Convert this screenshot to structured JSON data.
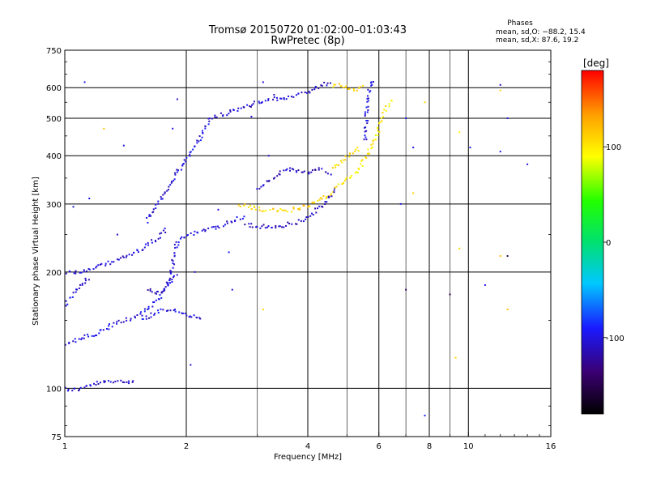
{
  "chart_data": {
    "type": "scatter",
    "title": "Tromsø 20150720 01:02:00–01:03:43",
    "subtitle": "RwPretec (8p)",
    "xlabel": "Frequency [MHz]",
    "ylabel": "Stationary phase Virtual Height [km]",
    "x_scale": "log",
    "y_scale": "log",
    "xlim": [
      1,
      16
    ],
    "ylim": [
      75,
      750
    ],
    "x_ticks": [
      1,
      2,
      4,
      6,
      8,
      10,
      16
    ],
    "y_ticks": [
      75,
      100,
      200,
      300,
      400,
      500,
      600,
      750
    ],
    "grid": true,
    "stats_header": "Phases",
    "stats_line1": "mean, sd,O: −88.2, 15.4",
    "stats_line2": "mean, sd,X:  87.6, 19.2",
    "colorbar": {
      "label": "[deg]",
      "range": [
        -180,
        180
      ],
      "ticks": [
        100,
        0,
        -100
      ],
      "colormap": "rainbow-black-to-red",
      "colors": [
        "#000000",
        "#3a0070",
        "#1a1aff",
        "#00c8ff",
        "#00e070",
        "#22ff00",
        "#ffff00",
        "#ffa000",
        "#ff0000"
      ]
    },
    "series": [
      {
        "traces": [
          {
            "points": [
              [
                1.0,
                100
              ],
              [
                1.05,
                99
              ],
              [
                1.1,
                100
              ],
              [
                1.2,
                103
              ],
              [
                1.3,
                104
              ],
              [
                1.4,
                104
              ],
              [
                1.5,
                105
              ]
            ],
            "phase": -105
          },
          {
            "points": [
              [
                1.0,
                200
              ],
              [
                1.1,
                200
              ],
              [
                1.2,
                205
              ],
              [
                1.3,
                212
              ],
              [
                1.4,
                218
              ],
              [
                1.5,
                225
              ],
              [
                1.6,
                235
              ],
              [
                1.7,
                245
              ],
              [
                1.8,
                260
              ]
            ],
            "phase": -105
          },
          {
            "points": [
              [
                1.0,
                130
              ],
              [
                1.1,
                135
              ],
              [
                1.2,
                138
              ],
              [
                1.3,
                145
              ],
              [
                1.4,
                150
              ],
              [
                1.5,
                152
              ],
              [
                1.6,
                160
              ],
              [
                1.7,
                170
              ],
              [
                1.8,
                185
              ],
              [
                1.9,
                200
              ]
            ],
            "phase": -100
          },
          {
            "points": [
              [
                1.6,
                180
              ],
              [
                1.7,
                175
              ],
              [
                1.8,
                185
              ],
              [
                1.9,
                240
              ],
              [
                2.0,
                250
              ],
              [
                2.2,
                255
              ],
              [
                2.4,
                262
              ],
              [
                2.6,
                270
              ],
              [
                2.8,
                280
              ]
            ],
            "phase": -105
          },
          {
            "points": [
              [
                1.6,
                270
              ],
              [
                1.7,
                300
              ],
              [
                1.8,
                330
              ],
              [
                1.9,
                360
              ],
              [
                2.0,
                390
              ],
              [
                2.1,
                420
              ],
              [
                2.2,
                460
              ],
              [
                2.3,
                500
              ]
            ],
            "phase": -100
          },
          {
            "points": [
              [
                2.3,
                500
              ],
              [
                2.5,
                515
              ],
              [
                2.7,
                530
              ],
              [
                3.0,
                548
              ],
              [
                3.3,
                560
              ],
              [
                3.6,
                568
              ],
              [
                4.0,
                585
              ],
              [
                4.4,
                612
              ],
              [
                4.6,
                625
              ]
            ],
            "phase": -105
          },
          {
            "points": [
              [
                4.6,
                605
              ],
              [
                4.8,
                612
              ],
              [
                5.0,
                600
              ],
              [
                5.3,
                592
              ],
              [
                5.5,
                610
              ]
            ],
            "phase": 110
          },
          {
            "points": [
              [
                5.55,
                440
              ],
              [
                5.6,
                520
              ],
              [
                5.7,
                600
              ],
              [
                5.8,
                635
              ]
            ],
            "phase": -100
          },
          {
            "points": [
              [
                2.7,
                298
              ],
              [
                2.9,
                294
              ],
              [
                3.1,
                290
              ],
              [
                3.3,
                288
              ],
              [
                3.5,
                288
              ],
              [
                3.8,
                292
              ],
              [
                4.1,
                300
              ],
              [
                4.4,
                312
              ],
              [
                4.7,
                325
              ]
            ],
            "phase": 110
          },
          {
            "points": [
              [
                2.8,
                265
              ],
              [
                3.0,
                262
              ],
              [
                3.2,
                262
              ],
              [
                3.5,
                264
              ],
              [
                3.8,
                270
              ],
              [
                4.1,
                282
              ],
              [
                4.4,
                300
              ],
              [
                4.7,
                330
              ]
            ],
            "phase": -110
          },
          {
            "points": [
              [
                4.7,
                330
              ],
              [
                5.0,
                345
              ],
              [
                5.3,
                365
              ],
              [
                5.6,
                400
              ],
              [
                5.9,
                450
              ],
              [
                6.2,
                520
              ],
              [
                6.5,
                560
              ]
            ],
            "phase": 100
          },
          {
            "points": [
              [
                3.0,
                330
              ],
              [
                3.2,
                345
              ],
              [
                3.4,
                360
              ],
              [
                3.7,
                370
              ],
              [
                4.0,
                360
              ],
              [
                4.3,
                370
              ],
              [
                4.6,
                360
              ]
            ],
            "phase": -110
          },
          {
            "points": [
              [
                4.6,
                370
              ],
              [
                4.8,
                385
              ],
              [
                5.0,
                395
              ],
              [
                5.2,
                410
              ],
              [
                5.4,
                420
              ]
            ],
            "phase": 105
          },
          {
            "points": [
              [
                1.0,
                165
              ],
              [
                1.05,
                175
              ],
              [
                1.1,
                185
              ],
              [
                1.15,
                195
              ]
            ],
            "phase": -100
          },
          {
            "points": [
              [
                1.55,
                150
              ],
              [
                1.7,
                158
              ],
              [
                1.85,
                160
              ],
              [
                2.0,
                155
              ],
              [
                2.2,
                150
              ]
            ],
            "phase": -100
          }
        ],
        "scatter": [
          [
            1.12,
            620,
            -95
          ],
          [
            1.85,
            470,
            -100
          ],
          [
            1.35,
            250,
            -105
          ],
          [
            1.25,
            470,
            120
          ],
          [
            2.55,
            225,
            -95
          ],
          [
            2.05,
            115,
            -100
          ],
          [
            3.1,
            160,
            110
          ],
          [
            7.0,
            500,
            -95
          ],
          [
            7.3,
            420,
            -95
          ],
          [
            7.3,
            320,
            110
          ],
          [
            6.8,
            300,
            -100
          ],
          [
            7.8,
            550,
            110
          ],
          [
            9.5,
            460,
            90
          ],
          [
            9.5,
            230,
            110
          ],
          [
            9.3,
            120,
            110
          ],
          [
            10.1,
            420,
            -95
          ],
          [
            12.0,
            610,
            -110
          ],
          [
            12.0,
            590,
            110
          ],
          [
            12.5,
            500,
            -100
          ],
          [
            12.0,
            410,
            -95
          ],
          [
            12.0,
            220,
            120
          ],
          [
            12.5,
            160,
            120
          ],
          [
            14.0,
            380,
            -100
          ],
          [
            11.0,
            185,
            -95
          ],
          [
            9.0,
            175,
            -150
          ],
          [
            7.0,
            180,
            -140
          ],
          [
            7.8,
            85,
            -90
          ],
          [
            12.5,
            220,
            -150
          ],
          [
            1.05,
            295,
            -100
          ],
          [
            1.15,
            310,
            -95
          ],
          [
            2.1,
            200,
            -100
          ],
          [
            2.4,
            290,
            -105
          ],
          [
            2.6,
            180,
            -100
          ],
          [
            1.9,
            560,
            -105
          ],
          [
            2.9,
            505,
            -100
          ],
          [
            3.1,
            620,
            -105
          ],
          [
            3.3,
            575,
            -110
          ],
          [
            1.4,
            425,
            -100
          ],
          [
            3.2,
            400,
            -110
          ]
        ]
      }
    ]
  }
}
